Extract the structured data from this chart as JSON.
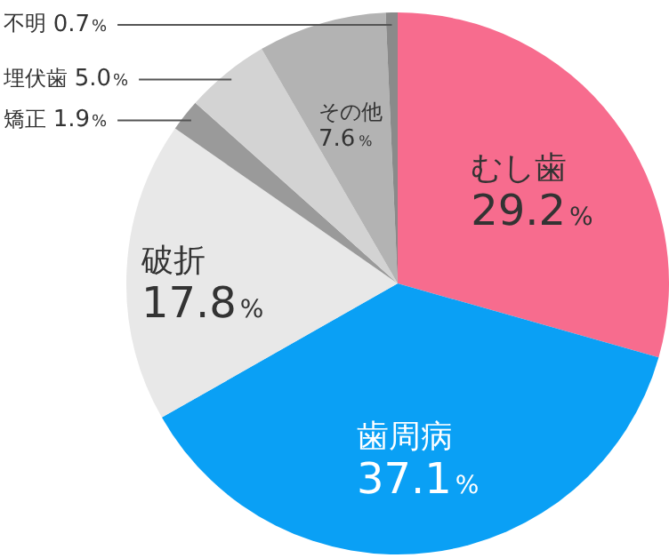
{
  "chart_data": {
    "type": "pie",
    "categories": [
      "むし歯",
      "歯周病",
      "破折",
      "矯正",
      "埋伏歯",
      "その他",
      "不明"
    ],
    "values": [
      29.2,
      37.1,
      17.8,
      1.9,
      5.0,
      7.6,
      0.7
    ],
    "value_labels": [
      "29.2%",
      "37.1%",
      "17.8%",
      "1.9%",
      "5.0%",
      "7.6%",
      "0.7%"
    ],
    "colors": [
      "#f76c8e",
      "#0aa0f5",
      "#e8e8e8",
      "#9a9a9a",
      "#d3d3d3",
      "#b3b3b3",
      "#8a8a8a"
    ],
    "legend": false
  }
}
